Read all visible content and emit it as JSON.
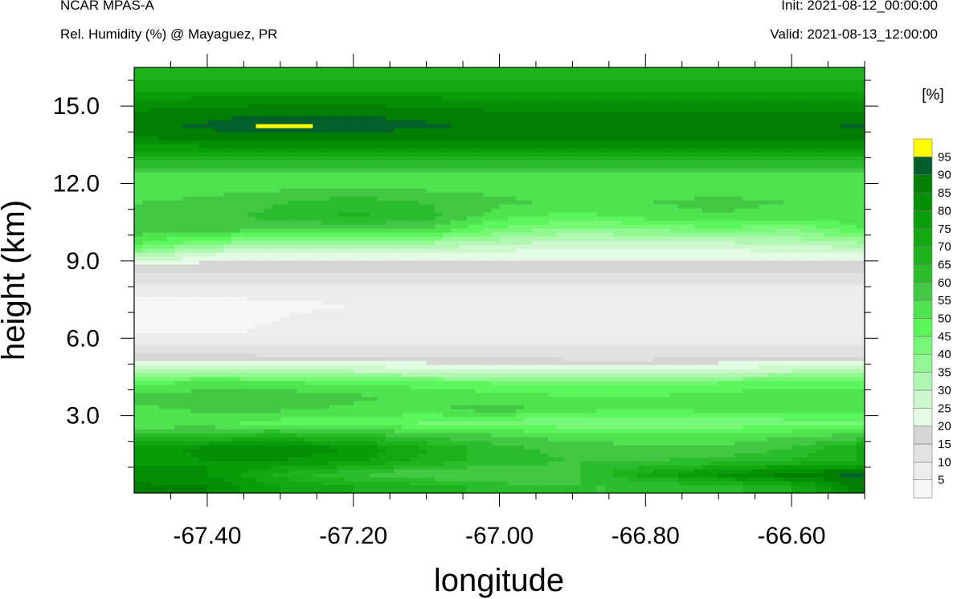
{
  "header": {
    "model": "NCAR MPAS-A",
    "field": "Rel. Humidity (%) @ Mayaguez, PR",
    "init": "Init: 2021-08-12_00:00:00",
    "valid": "Valid: 2021-08-13_12:00:00"
  },
  "chart_data": {
    "type": "heatmap",
    "title": "Rel. Humidity (%) @ Mayaguez, PR",
    "xlabel": "longitude",
    "ylabel": "height (km)",
    "xlim": [
      -67.5,
      -66.5
    ],
    "ylim": [
      0,
      16.5
    ],
    "x_ticks": [
      -67.4,
      -67.2,
      -67.0,
      -66.8,
      -66.6
    ],
    "x_tick_labels": [
      "-67.40",
      "-67.20",
      "-67.00",
      "-66.80",
      "-66.60"
    ],
    "y_ticks": [
      3,
      6,
      9,
      12,
      15
    ],
    "y_tick_labels": [
      "3.0",
      "6.0",
      "9.0",
      "12.0",
      "15.0"
    ],
    "colorbar": {
      "unit_label": "[%]",
      "levels": [
        5,
        10,
        15,
        20,
        25,
        30,
        35,
        40,
        45,
        50,
        55,
        60,
        65,
        70,
        75,
        80,
        85,
        90,
        95
      ],
      "level_labels": [
        "5",
        "10",
        "15",
        "20",
        "25",
        "30",
        "35",
        "40",
        "45",
        "50",
        "55",
        "60",
        "65",
        "70",
        "75",
        "80",
        "85",
        "90",
        "95"
      ],
      "colors": [
        "#f6f6f6",
        "#ececec",
        "#e2e2e2",
        "#d6d6d6",
        "#e4fbe4",
        "#cdf8cd",
        "#b1f7b1",
        "#93f793",
        "#76f876",
        "#5bf65b",
        "#4fe44f",
        "#43c843",
        "#2bbd2b",
        "#1db31d",
        "#12a812",
        "#099e09",
        "#048f04",
        "#027e02",
        "#035f2c",
        "#ffff00"
      ]
    },
    "lon_grid": [
      -67.5,
      -67.4,
      -67.3,
      -67.2,
      -67.1,
      -67.0,
      -66.9,
      -66.8,
      -66.7,
      -66.6,
      -66.5
    ],
    "height_grid_km": [
      0.25,
      0.75,
      1.25,
      1.75,
      2.25,
      2.75,
      3.25,
      3.75,
      4.25,
      4.75,
      5.25,
      5.75,
      6.25,
      6.75,
      7.25,
      7.75,
      8.25,
      8.75,
      9.25,
      9.75,
      10.25,
      10.75,
      11.25,
      11.75,
      12.25,
      12.75,
      13.25,
      13.75,
      14.25,
      14.75,
      15.25,
      15.75,
      16.25
    ],
    "rh_percent": [
      [
        86,
        85,
        75,
        70,
        68,
        62,
        60,
        60,
        62,
        70,
        88
      ],
      [
        84,
        80,
        68,
        60,
        55,
        55,
        58,
        72,
        82,
        88,
        92
      ],
      [
        78,
        80,
        80,
        76,
        68,
        62,
        60,
        60,
        62,
        66,
        70
      ],
      [
        76,
        82,
        84,
        80,
        70,
        62,
        58,
        56,
        56,
        60,
        72
      ],
      [
        60,
        64,
        66,
        62,
        58,
        55,
        52,
        52,
        52,
        54,
        56
      ],
      [
        52,
        50,
        48,
        46,
        44,
        42,
        40,
        40,
        40,
        42,
        42
      ],
      [
        54,
        56,
        56,
        54,
        54,
        58,
        52,
        50,
        52,
        54,
        54
      ],
      [
        56,
        58,
        58,
        56,
        54,
        52,
        50,
        50,
        52,
        54,
        54
      ],
      [
        50,
        52,
        52,
        50,
        48,
        46,
        44,
        44,
        46,
        48,
        48
      ],
      [
        34,
        34,
        32,
        30,
        28,
        26,
        26,
        26,
        28,
        30,
        30
      ],
      [
        18,
        18,
        16,
        16,
        15,
        15,
        14,
        14,
        15,
        16,
        16
      ],
      [
        10,
        10,
        10,
        10,
        10,
        10,
        10,
        10,
        10,
        10,
        10
      ],
      [
        4,
        4,
        6,
        6,
        8,
        8,
        8,
        10,
        8,
        8,
        8
      ],
      [
        3,
        3,
        5,
        8,
        9,
        9,
        9,
        9,
        8,
        8,
        8
      ],
      [
        3,
        3,
        4,
        5,
        6,
        6,
        6,
        6,
        6,
        6,
        6
      ],
      [
        6,
        6,
        6,
        6,
        6,
        6,
        6,
        6,
        6,
        6,
        6
      ],
      [
        12,
        12,
        12,
        12,
        12,
        12,
        12,
        12,
        12,
        12,
        12
      ],
      [
        16,
        16,
        16,
        16,
        16,
        16,
        16,
        16,
        16,
        16,
        16
      ],
      [
        35,
        25,
        22,
        22,
        22,
        22,
        22,
        22,
        22,
        22,
        22
      ],
      [
        52,
        42,
        38,
        38,
        36,
        32,
        28,
        30,
        30,
        32,
        36
      ],
      [
        58,
        58,
        55,
        56,
        55,
        44,
        38,
        40,
        44,
        40,
        50
      ],
      [
        56,
        58,
        62,
        66,
        62,
        52,
        48,
        52,
        55,
        52,
        54
      ],
      [
        55,
        56,
        60,
        64,
        60,
        56,
        54,
        55,
        56,
        55,
        55
      ],
      [
        54,
        54,
        55,
        56,
        55,
        54,
        54,
        54,
        54,
        54,
        54
      ],
      [
        52,
        52,
        52,
        52,
        52,
        52,
        52,
        52,
        52,
        52,
        52
      ],
      [
        62,
        62,
        62,
        62,
        62,
        62,
        62,
        62,
        62,
        62,
        62
      ],
      [
        74,
        76,
        76,
        76,
        76,
        76,
        76,
        76,
        76,
        76,
        76
      ],
      [
        84,
        86,
        86,
        86,
        86,
        86,
        86,
        86,
        86,
        86,
        86
      ],
      [
        88,
        91,
        97,
        93,
        91,
        88,
        86,
        86,
        86,
        88,
        91
      ],
      [
        86,
        88,
        89,
        89,
        88,
        86,
        85,
        85,
        85,
        85,
        86
      ],
      [
        80,
        82,
        82,
        82,
        82,
        80,
        80,
        80,
        80,
        80,
        80
      ],
      [
        72,
        72,
        72,
        72,
        72,
        72,
        72,
        72,
        72,
        72,
        72
      ],
      [
        68,
        68,
        68,
        68,
        68,
        68,
        68,
        68,
        68,
        68,
        68
      ]
    ]
  }
}
